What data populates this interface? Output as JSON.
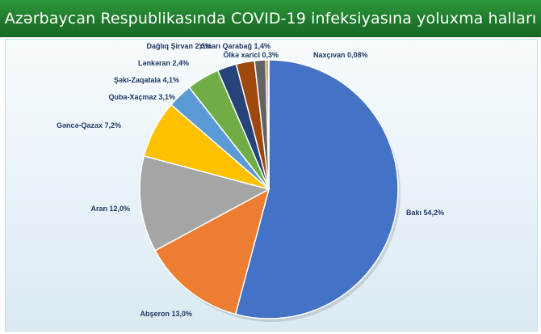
{
  "title": "Azərbaycan Respublikasında COVID-19 infeksiyasına yoluxma halları",
  "chart_data": {
    "type": "pie",
    "title": "Azərbaycan Respublikasında COVID-19 infeksiyasına yoluxma halları",
    "slices": [
      {
        "name": "Bakı",
        "value": 54.2,
        "label": "Bakı 54,2%",
        "color": "#4472c4"
      },
      {
        "name": "Abşeron",
        "value": 13.0,
        "label": "Abşeron 13,0%",
        "color": "#ed7d31"
      },
      {
        "name": "Aran",
        "value": 12.0,
        "label": "Aran 12,0%",
        "color": "#a5a5a5"
      },
      {
        "name": "Gəncə-Qazax",
        "value": 7.2,
        "label": "Gəncə-Qazax 7,2%",
        "color": "#ffc000"
      },
      {
        "name": "Quba-Xaçmaz",
        "value": 3.1,
        "label": "Quba-Xaçmaz 3,1%",
        "color": "#5b9bd5"
      },
      {
        "name": "Şəki-Zaqatala",
        "value": 4.1,
        "label": "Şəki-Zaqatala 4,1%",
        "color": "#70ad47"
      },
      {
        "name": "Lənkəran",
        "value": 2.4,
        "label": "Lənkəran 2,4%",
        "color": "#264478"
      },
      {
        "name": "Dağlıq Şirvan",
        "value": 2.3,
        "label": "Dağlıq Şirvan 2,3%",
        "color": "#9e480e"
      },
      {
        "name": "Yuxarı Qarabağ",
        "value": 1.4,
        "label": "Yuxarı Qarabağ 1,4%",
        "color": "#636363"
      },
      {
        "name": "Ölkə xarici",
        "value": 0.3,
        "label": "Ölkə xarici 0,3%",
        "color": "#997300"
      },
      {
        "name": "Naxçıvan",
        "value": 0.08,
        "label": "Naxçıvan 0,08%",
        "color": "#e8c77a"
      }
    ],
    "legend": "none"
  }
}
